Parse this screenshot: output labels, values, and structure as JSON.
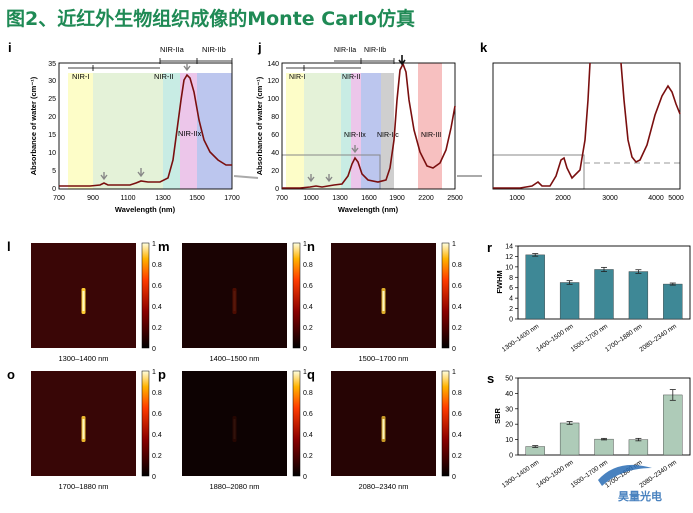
{
  "title": "图2、近红外生物组织成像的Monte Carlo仿真",
  "watermark": "昊量光电",
  "colors": {
    "title": "#1f8a55",
    "curve": "#7a0f0f",
    "teal_bar": "#3e8896",
    "green_bar": "#aecbb8"
  },
  "panels": {
    "i": {
      "label": "i",
      "ylabel": "Absorbance of water (cm⁻¹)",
      "xlabel": "Wavelength (nm)",
      "xticks": [
        "700",
        "900",
        "1100",
        "1300",
        "1500",
        "1700"
      ],
      "yticks": [
        "0",
        "5",
        "10",
        "15",
        "20",
        "25",
        "30",
        "35"
      ],
      "bands": [
        "NIR-I",
        "NIR-II",
        "NIR-IIa",
        "NIR-IIb",
        "NIR-IIx"
      ]
    },
    "j": {
      "label": "j",
      "ylabel": "Absorbance of water (cm⁻¹)",
      "xlabel": "Wavelength (nm)",
      "xticks": [
        "700",
        "1000",
        "1300",
        "1600",
        "1900",
        "2200",
        "2500"
      ],
      "yticks": [
        "0",
        "20",
        "40",
        "60",
        "80",
        "100",
        "120",
        "140"
      ],
      "bands": [
        "NIR-I",
        "NIR-II",
        "NIR-IIa",
        "NIR-IIb",
        "NIR-IIx",
        "NIR-IIc",
        "NIR-III"
      ]
    },
    "k": {
      "label": "k",
      "xticks": [
        "1000",
        "2000",
        "3000",
        "4000",
        "5000"
      ]
    }
  },
  "images": [
    {
      "label": "l",
      "caption": "1300–1400 nm"
    },
    {
      "label": "m",
      "caption": "1400–1500 nm"
    },
    {
      "label": "n",
      "caption": "1500–1700 nm"
    },
    {
      "label": "o",
      "caption": "1700–1880 nm"
    },
    {
      "label": "p",
      "caption": "1880–2080 nm"
    },
    {
      "label": "q",
      "caption": "2080–2340 nm"
    }
  ],
  "colorbar_ticks": [
    "1",
    "0.8",
    "0.6",
    "0.4",
    "0.2",
    "0"
  ],
  "chart_data": [
    {
      "panel": "r",
      "type": "bar",
      "ylabel": "FWHM",
      "ylim": [
        0,
        14
      ],
      "yticks": [
        "0",
        "2",
        "4",
        "6",
        "8",
        "10",
        "12",
        "14"
      ],
      "categories": [
        "1300–1400 nm",
        "1400–1500 nm",
        "1500–1700 nm",
        "1700–1880 nm",
        "2080–2340 nm"
      ],
      "values": [
        12.3,
        7.0,
        9.5,
        9.1,
        6.7
      ],
      "errors": [
        0.25,
        0.35,
        0.4,
        0.35,
        0.2
      ]
    },
    {
      "panel": "s",
      "type": "bar",
      "ylabel": "SBR",
      "ylim": [
        0,
        50
      ],
      "yticks": [
        "0",
        "10",
        "20",
        "30",
        "40",
        "50"
      ],
      "categories": [
        "1300–1400 nm",
        "1400–1500 nm",
        "1500–1700 nm",
        "1700–1880 nm",
        "2080–2340 nm"
      ],
      "values": [
        5.5,
        20.8,
        10.3,
        10.0,
        39.0
      ],
      "errors": [
        0.6,
        0.9,
        0.5,
        0.8,
        3.5
      ]
    }
  ]
}
